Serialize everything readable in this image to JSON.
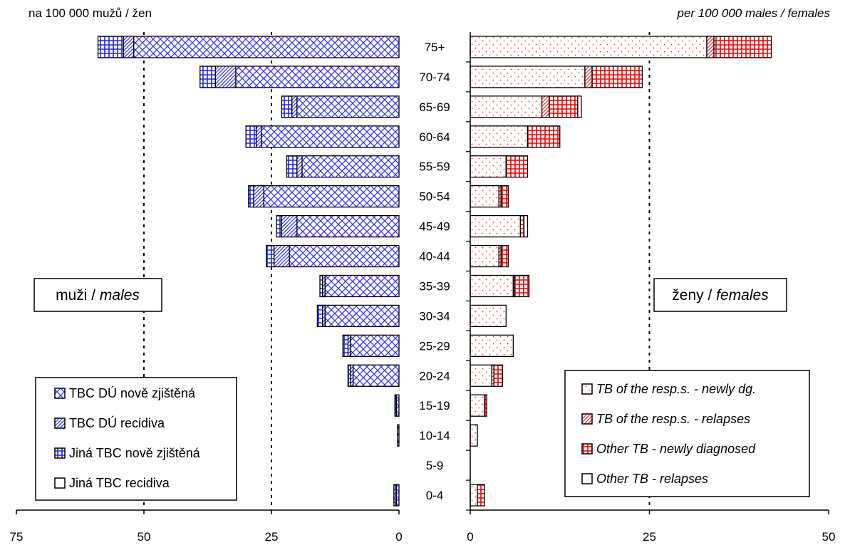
{
  "chart_data": [
    {
      "type": "bar",
      "orientation": "horizontal",
      "stacked": true,
      "reversed_x": true,
      "unit_label": "na 100 000 mužů / žen",
      "panel_label": {
        "main": "muži / ",
        "italic": "males"
      },
      "categories": [
        "0-4",
        "5-9",
        "10-14",
        "15-19",
        "20-24",
        "25-29",
        "30-34",
        "35-39",
        "40-44",
        "45-49",
        "50-54",
        "55-59",
        "60-64",
        "65-69",
        "70-74",
        "75+"
      ],
      "xlim": [
        0,
        75
      ],
      "xticks": [
        "0",
        "25",
        "50",
        "75"
      ],
      "gridlines_at": [
        25,
        50
      ],
      "legend_position": "bottom-left",
      "series": [
        {
          "name": "TBC DÚ nově zjištěná",
          "values": [
            0.5,
            0,
            0.3,
            0.5,
            9,
            9.5,
            14.5,
            14.5,
            21.5,
            20,
            26.5,
            19,
            27,
            20,
            32,
            52
          ],
          "color": "#3333ff",
          "pattern": "crosshatch"
        },
        {
          "name": "TBC DÚ recidiva",
          "values": [
            0,
            0,
            0,
            0,
            0.5,
            0.5,
            0.5,
            0.5,
            3,
            3,
            2,
            1,
            1,
            1,
            4,
            2
          ],
          "color": "#3333ff",
          "pattern": "diagonal"
        },
        {
          "name": "Jiná TBC nově zjištěná",
          "values": [
            0.5,
            0,
            0,
            0.3,
            0.5,
            1,
            1,
            0.5,
            1.5,
            1,
            1,
            2,
            2,
            2,
            3,
            5
          ],
          "color": "#3333ff",
          "pattern": "grid"
        },
        {
          "name": "Jiná TBC recidiva",
          "values": [
            0,
            0,
            0,
            0,
            0,
            0,
            0,
            0,
            0,
            0,
            0,
            0,
            0,
            0,
            0,
            0
          ],
          "color": "#ffffff",
          "pattern": "none"
        }
      ]
    },
    {
      "type": "bar",
      "orientation": "horizontal",
      "stacked": true,
      "unit_label": "per 100 000 males / females",
      "panel_label": {
        "main": "ženy / ",
        "italic": "females"
      },
      "categories": [
        "0-4",
        "5-9",
        "10-14",
        "15-19",
        "20-24",
        "25-29",
        "30-34",
        "35-39",
        "40-44",
        "45-49",
        "50-54",
        "55-59",
        "60-64",
        "65-69",
        "70-74",
        "75+"
      ],
      "xlim": [
        0,
        50
      ],
      "xticks": [
        "0",
        "25",
        "50"
      ],
      "gridlines_at": [
        25
      ],
      "legend_position": "bottom-right",
      "series": [
        {
          "name": "TB of the resp.s. - newly dg.",
          "values": [
            1,
            0,
            1,
            2,
            3,
            6,
            5,
            6,
            4,
            7,
            4,
            5,
            8,
            10,
            16,
            33
          ],
          "color": "#ff3333",
          "pattern": "dots"
        },
        {
          "name": "TB of the resp.s. - relapses",
          "values": [
            0,
            0,
            0,
            0,
            0.3,
            0,
            0,
            0.2,
            0.3,
            0,
            0.3,
            0,
            0,
            1,
            1,
            1
          ],
          "color": "#ff3333",
          "pattern": "diagonal"
        },
        {
          "name": "Other TB - newly diagnosed",
          "values": [
            1,
            0,
            0,
            0.3,
            1.2,
            0,
            0,
            2,
            1,
            0.5,
            1,
            3,
            4.5,
            4,
            7,
            8
          ],
          "color": "#ff0000",
          "pattern": "grid"
        },
        {
          "name": "Other TB - relapses",
          "values": [
            0,
            0,
            0,
            0,
            0,
            0,
            0,
            0,
            0,
            0.5,
            0,
            0,
            0,
            0.5,
            0,
            0
          ],
          "color": "#ffffff",
          "pattern": "none"
        }
      ]
    }
  ]
}
